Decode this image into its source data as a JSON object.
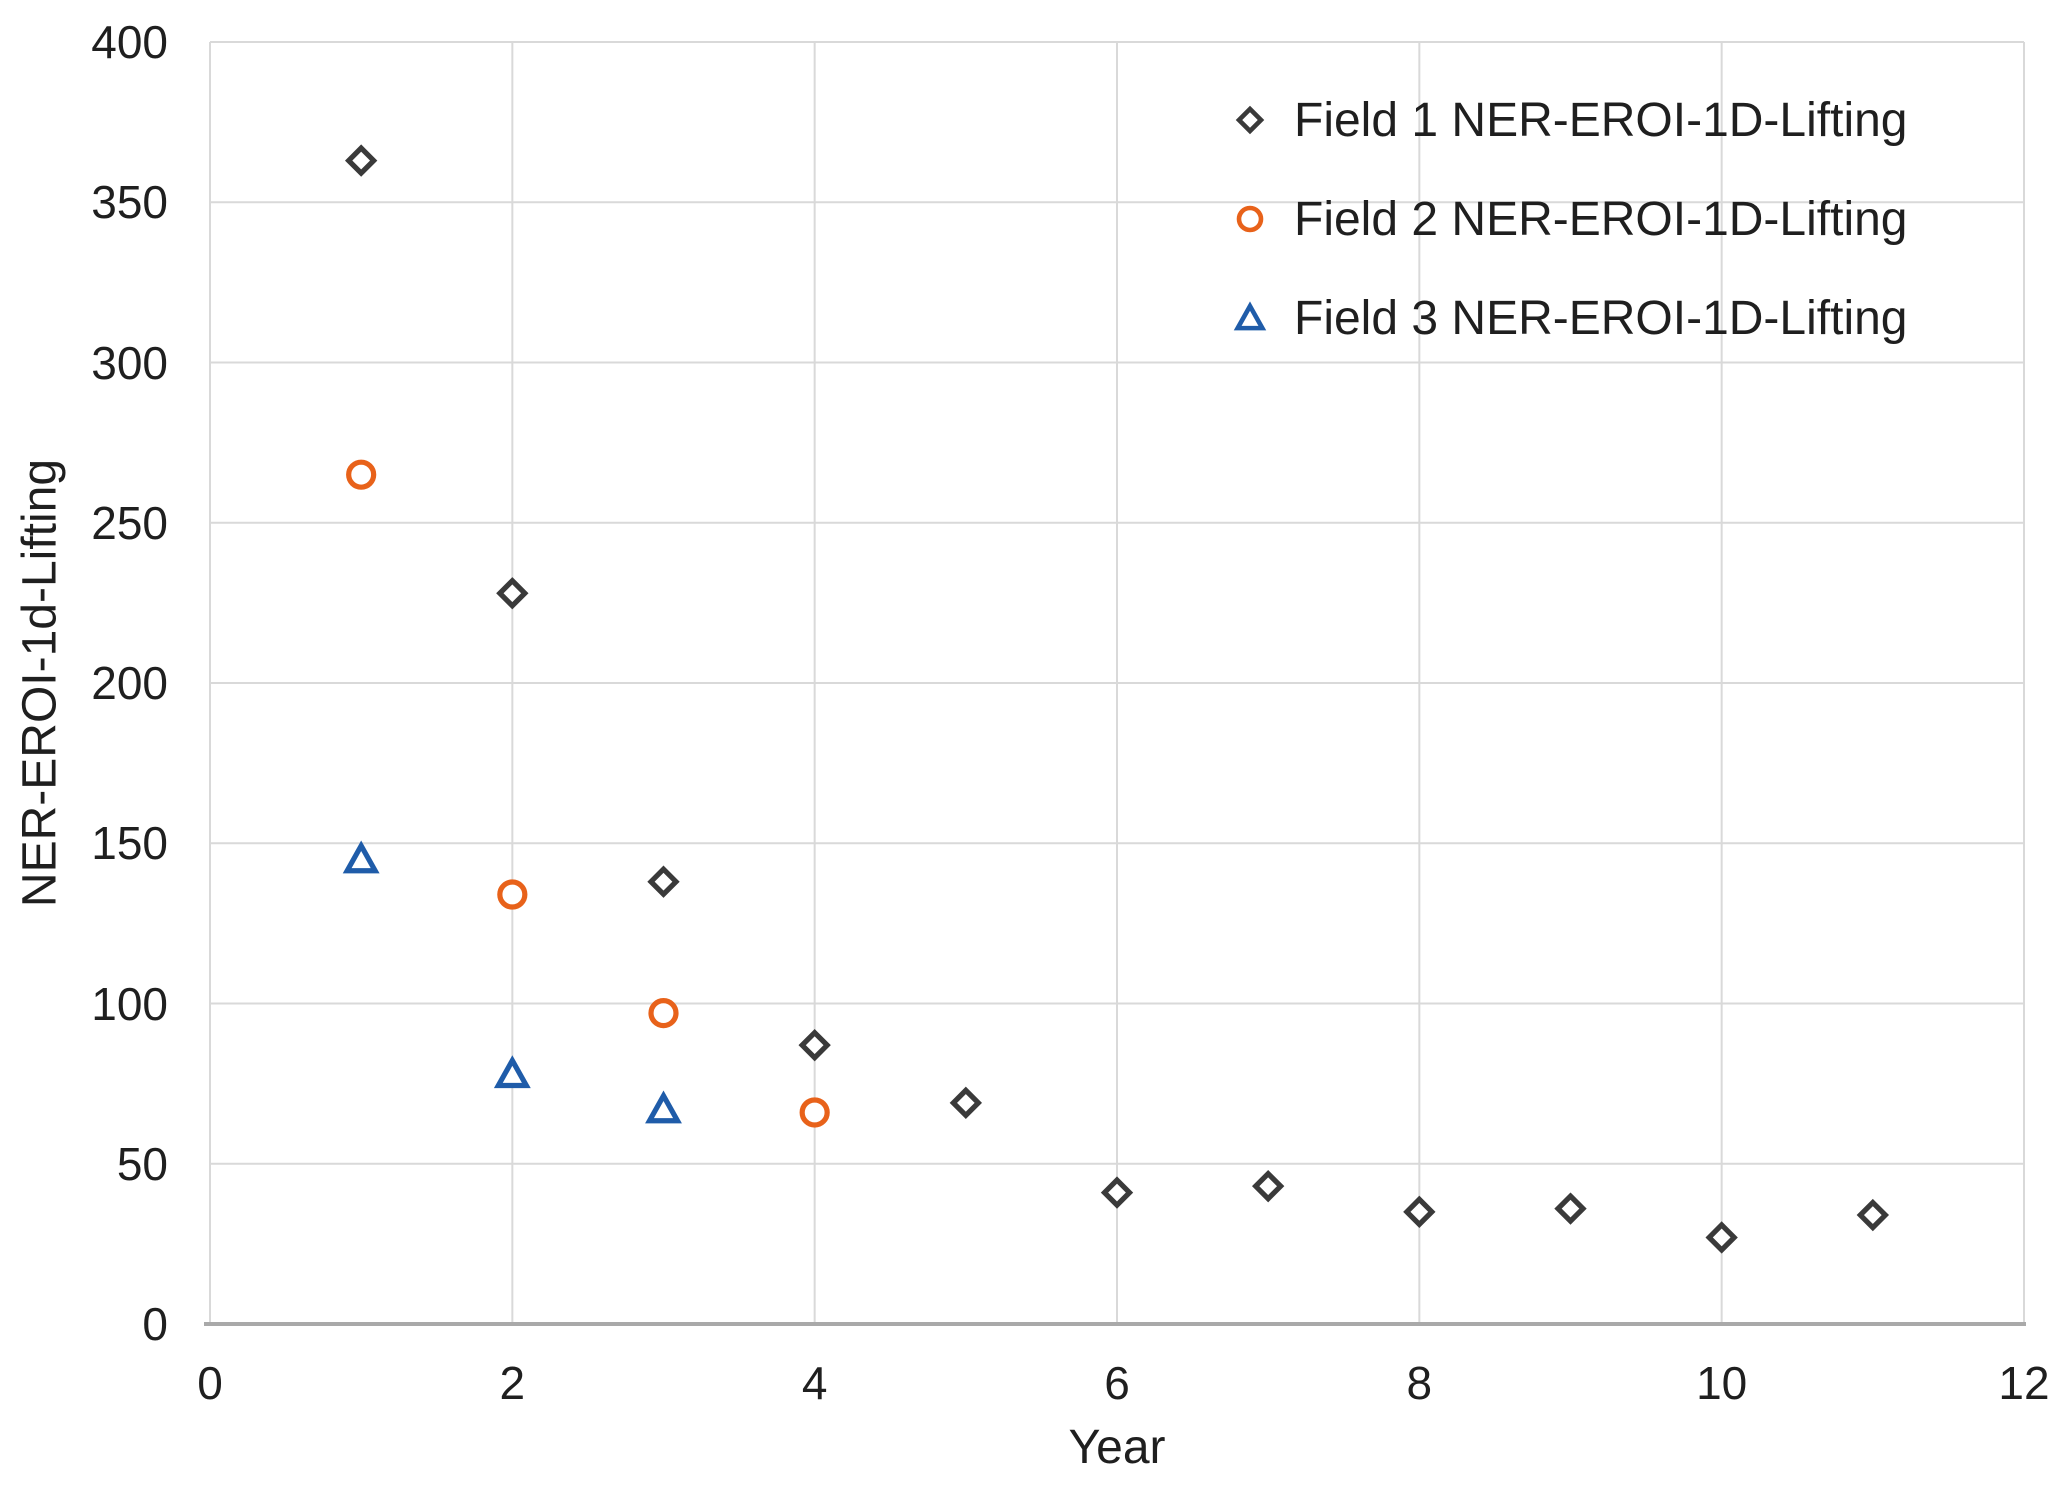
{
  "chart_data": {
    "type": "scatter",
    "title": "",
    "xlabel": "Year",
    "ylabel": "NER-EROI-1d-Lifting",
    "xlim": [
      0,
      12
    ],
    "ylim": [
      0,
      400
    ],
    "x_ticks": [
      0,
      2,
      4,
      6,
      8,
      10,
      12
    ],
    "y_ticks": [
      0,
      50,
      100,
      150,
      200,
      250,
      300,
      350,
      400
    ],
    "grid": true,
    "legend_position": "top-right-inside",
    "series": [
      {
        "name": "Field 1 NER-EROI-1D-Lifting",
        "marker": "diamond",
        "color": "#3a3a3a",
        "x": [
          1,
          2,
          3,
          4,
          5,
          6,
          7,
          8,
          9,
          10,
          11
        ],
        "y": [
          363,
          228,
          138,
          87,
          69,
          41,
          43,
          35,
          36,
          27,
          34
        ]
      },
      {
        "name": "Field 2 NER-EROI-1D-Lifting",
        "marker": "circle",
        "color": "#e8621a",
        "x": [
          1,
          2,
          3,
          4
        ],
        "y": [
          265,
          134,
          97,
          66
        ]
      },
      {
        "name": "Field 3 NER-EROI-1D-Lifting",
        "marker": "triangle",
        "color": "#1f5ca9",
        "x": [
          1,
          2,
          3
        ],
        "y": [
          145,
          78,
          67
        ]
      }
    ],
    "colors": {
      "grid": "#d9d9d9",
      "axis_line": "#a9a9a9",
      "text": "#1f1f1f",
      "marker_fill": "#ffffff"
    }
  }
}
